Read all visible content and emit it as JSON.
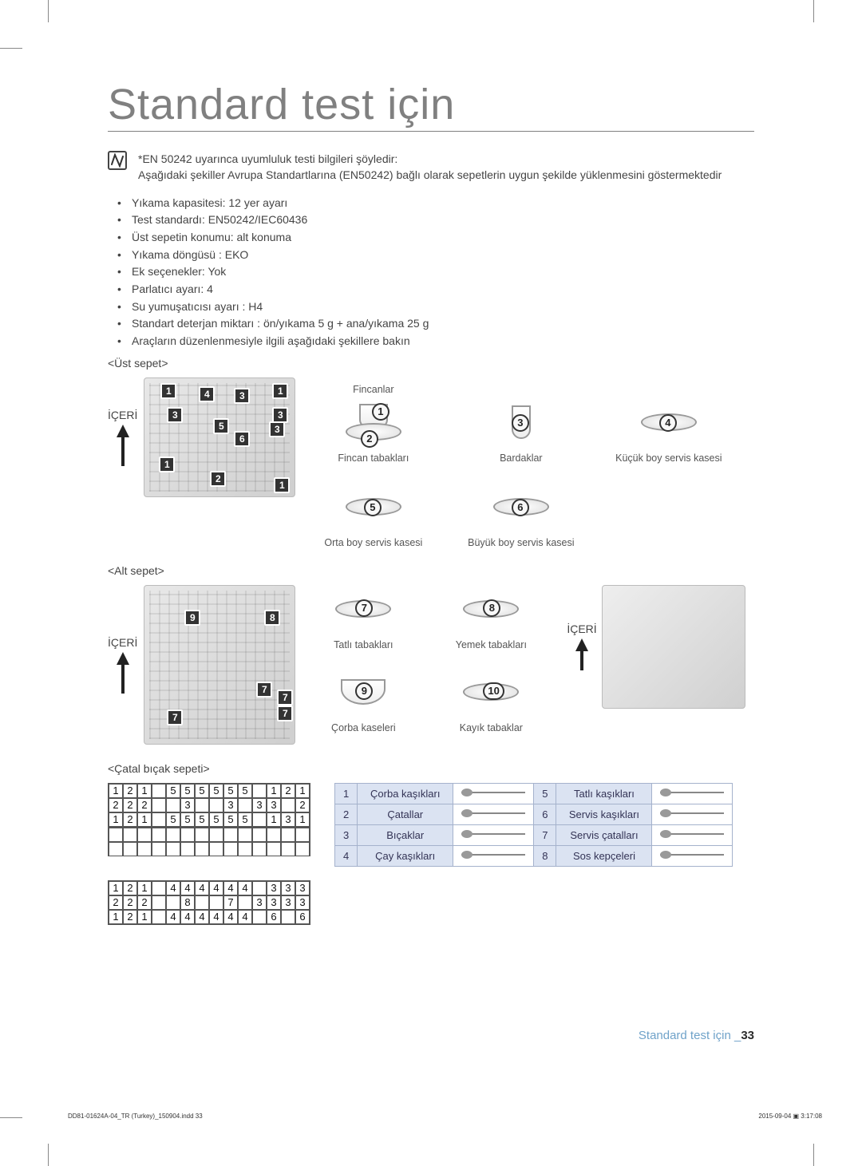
{
  "page_title": "Standard test için",
  "note": {
    "line1": "*EN 50242 uyarınca uyumluluk testi bilgileri şöyledir:",
    "line2": "Aşağıdaki şekiller Avrupa Standartlarına (EN50242) bağlı olarak sepetlerin uygun şekilde yüklenmesini göstermektedir"
  },
  "bullets": [
    "Yıkama kapasitesi: 12 yer ayarı",
    "Test standardı: EN50242/IEC60436",
    "Üst sepetin konumu: alt konuma",
    "Yıkama döngüsü : EKO",
    "Ek seçenekler: Yok",
    "Parlatıcı ayarı: 4",
    "Su yumuşatıcısı ayarı : H4",
    "Standart deterjan miktarı : ön/yıkama 5 g + ana/yıkama 25 g",
    "Araçların düzenlenmesiyle ilgili aşağıdaki şekillere bakın"
  ],
  "top_basket": {
    "heading": "<Üst sepet>",
    "inside_label": "İÇERİ",
    "callouts": [
      "1",
      "4",
      "3",
      "1",
      "3",
      "3",
      "5",
      "3",
      "6",
      "1",
      "2",
      "1"
    ],
    "items": [
      {
        "caption_top": "Fincanlar",
        "badge_a": "1",
        "badge_b": "2",
        "caption": "Fincan tabakları",
        "shape": "cup-plate"
      },
      {
        "badge": "3",
        "caption": "Bardaklar",
        "shape": "glass"
      },
      {
        "badge": "4",
        "caption": "Küçük boy servis kasesi",
        "shape": "plate"
      },
      {
        "badge": "5",
        "caption": "Orta boy servis kasesi",
        "shape": "plate"
      },
      {
        "badge": "6",
        "caption": "Büyük boy servis kasesi",
        "shape": "plate"
      },
      {
        "blank": true
      }
    ]
  },
  "bottom_basket": {
    "heading": "<Alt sepet>",
    "inside_label": "İÇERİ",
    "inside_label_right": "İÇERİ",
    "callouts": [
      "9",
      "8",
      "7",
      "7",
      "7",
      "7"
    ],
    "items": [
      {
        "badge": "7",
        "caption": "Tatlı tabakları",
        "shape": "plate"
      },
      {
        "badge": "8",
        "caption": "Yemek tabakları",
        "shape": "plate"
      },
      {
        "badge": "9",
        "caption": "Çorba kaseleri",
        "shape": "bowl"
      },
      {
        "badge": "10",
        "caption": "Kayık tabaklar",
        "shape": "plate"
      }
    ]
  },
  "cutlery": {
    "heading": "<Çatal bıçak sepeti>",
    "grid_top": [
      [
        "1",
        "2",
        "1",
        "",
        "5",
        "5",
        "5",
        "5",
        "5",
        "5",
        "",
        "1",
        "2",
        "1"
      ],
      [
        "2",
        "2",
        "2",
        "",
        "",
        "3",
        "",
        "",
        "3",
        "",
        "3",
        "3",
        "",
        "2"
      ],
      [
        "1",
        "2",
        "1",
        "",
        "5",
        "5",
        "5",
        "5",
        "5",
        "5",
        "",
        "1",
        "3",
        "1"
      ]
    ],
    "grid_mid": [
      [
        "",
        "",
        "",
        "",
        "",
        "",
        "",
        "",
        "",
        "",
        "",
        "",
        "",
        ""
      ],
      [
        "",
        "",
        "",
        "",
        "",
        "",
        "",
        "",
        "",
        "",
        "",
        "",
        "",
        ""
      ]
    ],
    "grid_bot": [
      [
        "1",
        "2",
        "1",
        "",
        "4",
        "4",
        "4",
        "4",
        "4",
        "4",
        "",
        "3",
        "3",
        "3"
      ],
      [
        "2",
        "2",
        "2",
        "",
        "",
        "8",
        "",
        "",
        "7",
        "",
        "3",
        "3",
        "3",
        "3"
      ],
      [
        "1",
        "2",
        "1",
        "",
        "4",
        "4",
        "4",
        "4",
        "4",
        "4",
        "",
        "6",
        "",
        "6"
      ]
    ],
    "legend": [
      {
        "n": "1",
        "name": "Çorba kaşıkları"
      },
      {
        "n": "2",
        "name": "Çatallar"
      },
      {
        "n": "3",
        "name": "Bıçaklar"
      },
      {
        "n": "4",
        "name": "Çay kaşıkları"
      },
      {
        "n": "5",
        "name": "Tatlı kaşıkları"
      },
      {
        "n": "6",
        "name": "Servis kaşıkları"
      },
      {
        "n": "7",
        "name": "Servis çatalları"
      },
      {
        "n": "8",
        "name": "Sos kepçeleri"
      }
    ]
  },
  "footer": {
    "text": "Standard test için _",
    "page": "33"
  },
  "meta": {
    "indd": "DD81-01624A-04_TR (Turkey)_150904.indd   33",
    "timestamp": "2015-09-04   ▣ 3:17:08"
  },
  "colors": {
    "title": "#808080",
    "text": "#444444",
    "accent": "#6fa2c9",
    "tableHeader": "#dbe3f2",
    "tableBorder": "#a5b2cc"
  }
}
